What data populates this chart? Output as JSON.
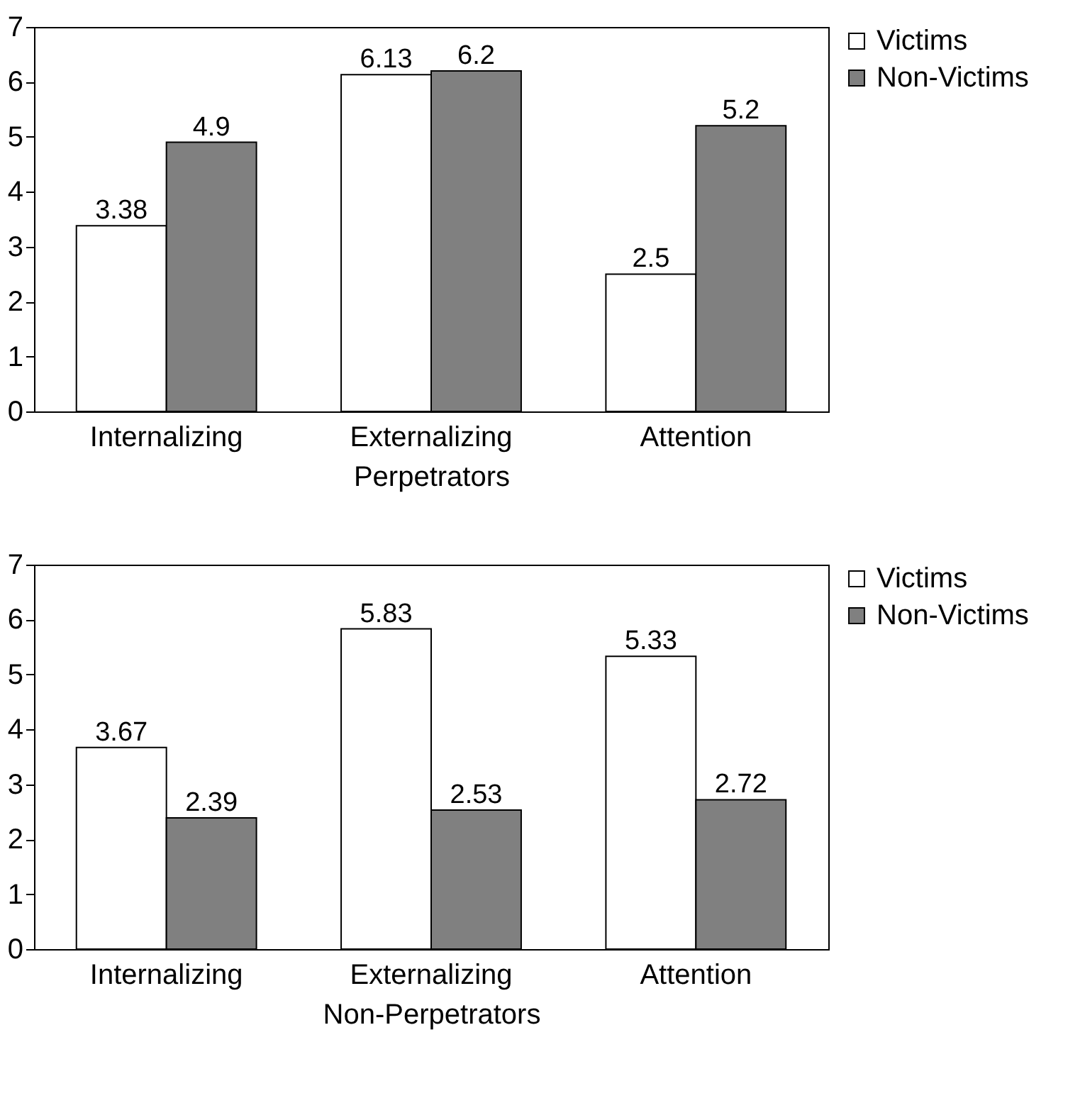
{
  "chart_data": [
    {
      "type": "bar",
      "xlabel": "Perpetrators",
      "categories": [
        "Internalizing",
        "Externalizing",
        "Attention"
      ],
      "series": [
        {
          "name": "Victims",
          "color": "#ffffff",
          "values": [
            3.38,
            6.13,
            2.5
          ]
        },
        {
          "name": "Non-Victims",
          "color": "#808080",
          "values": [
            4.9,
            6.2,
            5.2
          ]
        }
      ],
      "ylim": [
        0,
        7
      ],
      "yticks": [
        0,
        1,
        2,
        3,
        4,
        5,
        6,
        7
      ],
      "grid": false,
      "legend": "right",
      "data_labels": true
    },
    {
      "type": "bar",
      "xlabel": "Non-Perpetrators",
      "categories": [
        "Internalizing",
        "Externalizing",
        "Attention"
      ],
      "series": [
        {
          "name": "Victims",
          "color": "#ffffff",
          "values": [
            3.67,
            5.83,
            5.33
          ]
        },
        {
          "name": "Non-Victims",
          "color": "#808080",
          "values": [
            2.39,
            2.53,
            2.72
          ]
        }
      ],
      "ylim": [
        0,
        7
      ],
      "yticks": [
        0,
        1,
        2,
        3,
        4,
        5,
        6,
        7
      ],
      "grid": false,
      "legend": "right",
      "data_labels": true
    }
  ]
}
